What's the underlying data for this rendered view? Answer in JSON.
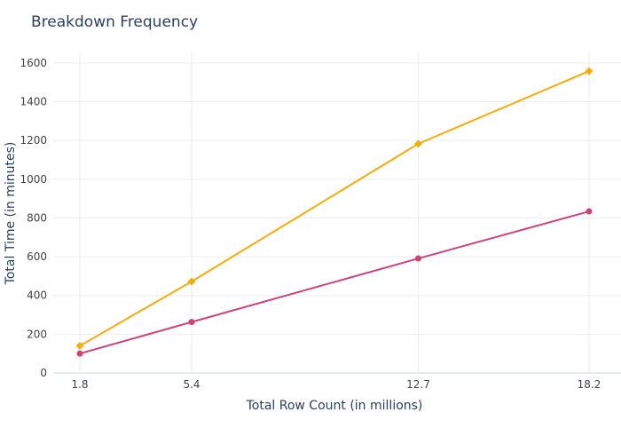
{
  "chart_data": {
    "type": "line",
    "title": "Breakdown Frequency",
    "xlabel": "Total Row Count (in millions)",
    "ylabel": "Total Time (in minutes)",
    "x": [
      1.8,
      5.4,
      12.7,
      18.2
    ],
    "x_tick_labels": [
      "1.8",
      "5.4",
      "12.7",
      "18.2"
    ],
    "xlim": [
      1.8,
      18.2
    ],
    "ylim": [
      0,
      1650
    ],
    "y_ticks": [
      0,
      200,
      400,
      600,
      800,
      1000,
      1200,
      1400,
      1600
    ],
    "grid": true,
    "legend": "none",
    "series": [
      {
        "color": "#f5ac0f",
        "marker": "diamond",
        "values": [
          140,
          472,
          1183,
          1558
        ]
      },
      {
        "color": "#cc4476",
        "marker": "circle",
        "values": [
          100,
          263,
          591,
          834
        ]
      }
    ]
  }
}
